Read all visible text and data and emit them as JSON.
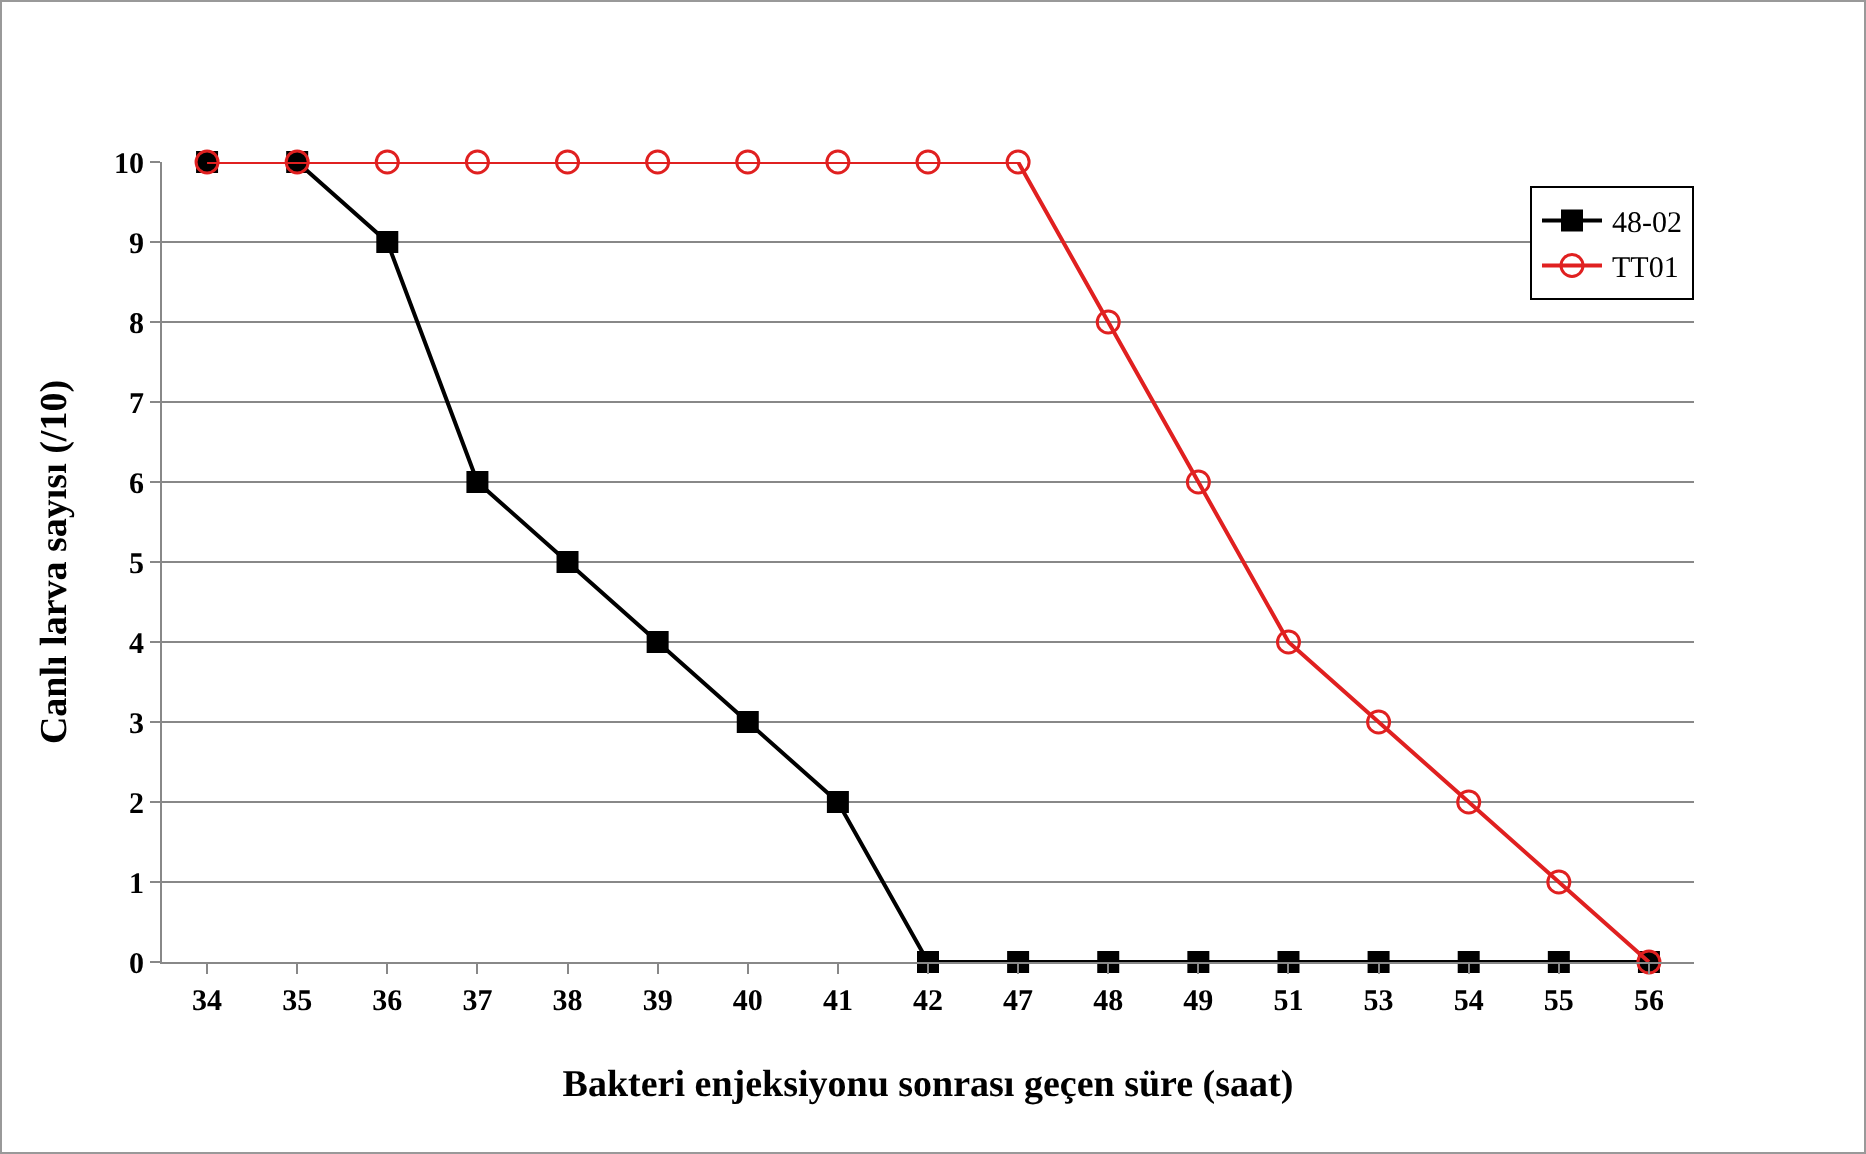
{
  "chart_data": {
    "type": "line",
    "xlabel": "Bakteri enjeksiyonu sonrası geçen süre (saat)",
    "ylabel": "Canlı larva sayısı (/10)",
    "categories": [
      "34",
      "35",
      "36",
      "37",
      "38",
      "39",
      "40",
      "41",
      "42",
      "47",
      "48",
      "49",
      "51",
      "53",
      "54",
      "55",
      "56"
    ],
    "series": [
      {
        "name": "48-02",
        "color": "#000000",
        "marker": "square",
        "values": [
          10,
          10,
          9,
          6,
          5,
          4,
          3,
          2,
          0,
          0,
          0,
          0,
          0,
          0,
          0,
          0,
          0
        ]
      },
      {
        "name": "TT01",
        "color": "#e02020",
        "marker": "circle",
        "values": [
          10,
          10,
          10,
          10,
          10,
          10,
          10,
          10,
          10,
          10,
          8,
          6,
          4,
          3,
          2,
          1,
          0
        ]
      }
    ],
    "ylim": [
      0,
      10
    ],
    "yticks": [
      0,
      1,
      2,
      3,
      4,
      5,
      6,
      7,
      8,
      9,
      10
    ],
    "grid": "y",
    "legend": "top right"
  }
}
